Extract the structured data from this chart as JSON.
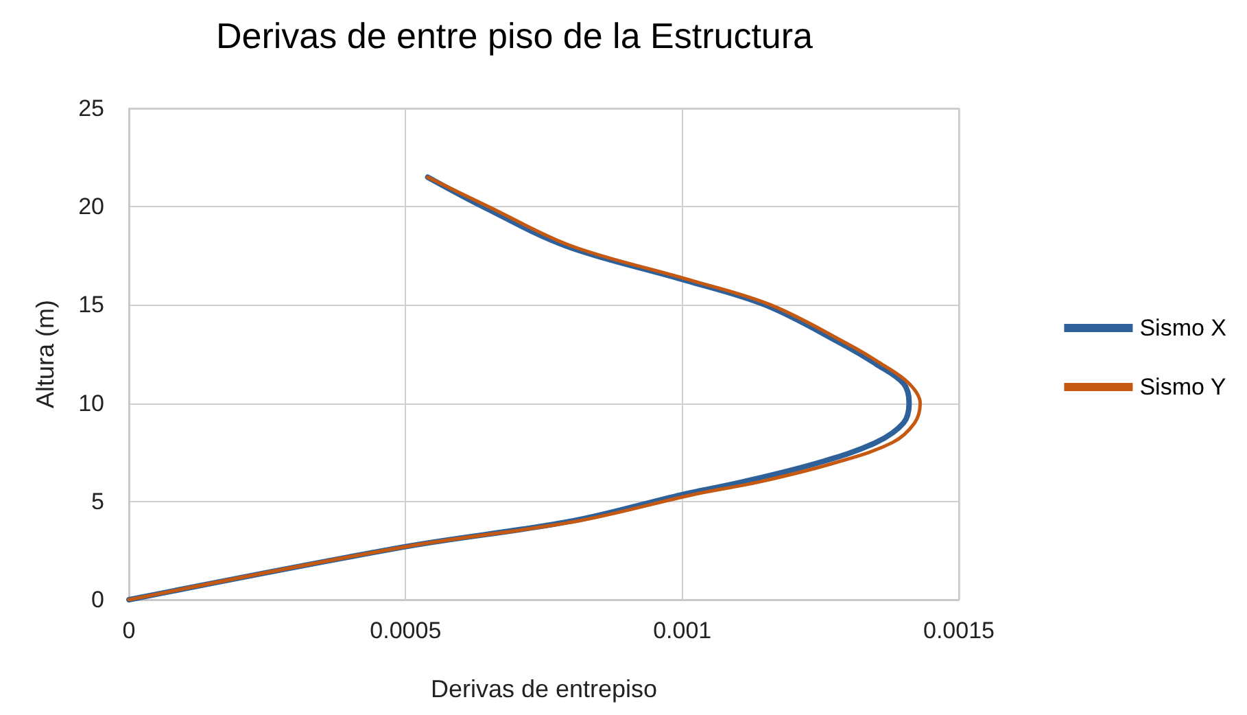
{
  "chart_data": {
    "type": "line",
    "title": "Derivas de entre piso de la Estructura",
    "xlabel": "Derivas de entrepiso",
    "ylabel": "Altura (m)",
    "series": [
      {
        "name": "Sismo X",
        "color": "#2e6099",
        "x": [
          0,
          0.0005,
          0.0008,
          0.001,
          0.00111,
          0.00125,
          0.00135,
          0.0014,
          0.00141,
          0.0014,
          0.00135,
          0.00129,
          0.00115,
          0.001,
          0.00079,
          0.00064,
          0.00054
        ],
        "values": [
          0,
          2.7,
          4,
          5.35,
          6,
          7,
          8,
          9,
          10,
          11,
          12,
          13,
          15,
          16.3,
          18,
          20,
          21.5
        ]
      },
      {
        "name": "Sismo Y",
        "color": "#c65911",
        "x": [
          0,
          0.0005,
          0.00081,
          0.00102,
          0.00114,
          0.00128,
          0.00138,
          0.00142,
          0.00143,
          0.00141,
          0.00136,
          0.0013,
          0.00116,
          0.00101,
          0.0008,
          0.00065,
          0.00054
        ],
        "values": [
          0,
          2.7,
          4,
          5.35,
          6,
          7,
          8,
          9,
          10,
          11,
          12,
          13,
          15,
          16.3,
          18,
          20,
          21.5
        ]
      }
    ],
    "xlim": [
      0,
      0.0015
    ],
    "xticks": [
      0,
      0.0005,
      0.001,
      0.0015
    ],
    "ylim": [
      0,
      25
    ],
    "yticks": [
      0,
      5,
      10,
      15,
      20,
      25
    ],
    "grid": true,
    "legend": "right",
    "marker": "none",
    "line_style": "solid"
  }
}
